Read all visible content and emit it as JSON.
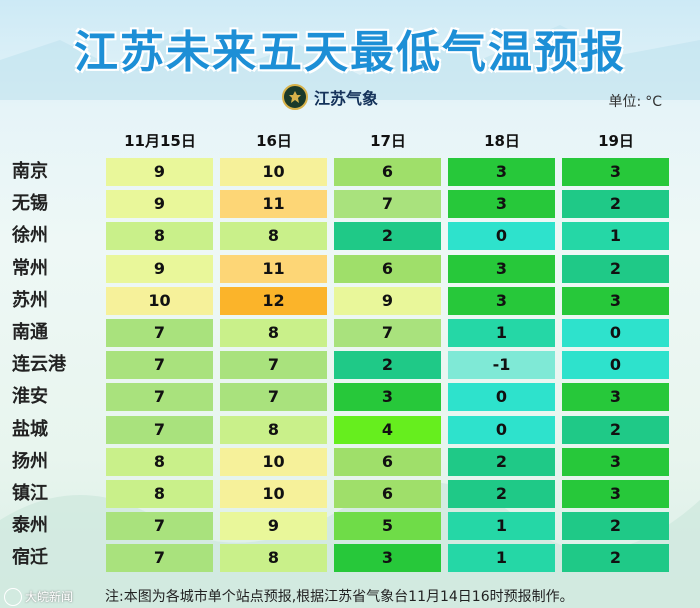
{
  "title": "江苏未来五天最低气温预报",
  "logo": {
    "name": "江苏气象"
  },
  "unit": {
    "label": "单位:",
    "value": "°C"
  },
  "columns": [
    "11月15日",
    "16日",
    "17日",
    "18日",
    "19日"
  ],
  "rows": [
    {
      "city": "南京",
      "values": [
        9,
        10,
        6,
        3,
        3
      ]
    },
    {
      "city": "无锡",
      "values": [
        9,
        11,
        7,
        3,
        2
      ]
    },
    {
      "city": "徐州",
      "values": [
        8,
        8,
        2,
        0,
        1
      ]
    },
    {
      "city": "常州",
      "values": [
        9,
        11,
        6,
        3,
        2
      ]
    },
    {
      "city": "苏州",
      "values": [
        10,
        12,
        9,
        3,
        3
      ]
    },
    {
      "city": "南通",
      "values": [
        7,
        8,
        7,
        1,
        0
      ]
    },
    {
      "city": "连云港",
      "values": [
        7,
        7,
        2,
        -1,
        0
      ]
    },
    {
      "city": "淮安",
      "values": [
        7,
        7,
        3,
        0,
        3
      ]
    },
    {
      "city": "盐城",
      "values": [
        7,
        8,
        4,
        0,
        2
      ]
    },
    {
      "city": "扬州",
      "values": [
        8,
        10,
        6,
        2,
        3
      ]
    },
    {
      "city": "镇江",
      "values": [
        8,
        10,
        6,
        2,
        3
      ]
    },
    {
      "city": "泰州",
      "values": [
        7,
        9,
        5,
        1,
        2
      ]
    },
    {
      "city": "宿迁",
      "values": [
        7,
        8,
        3,
        1,
        2
      ]
    }
  ],
  "colors": {
    "-1": "#7fe9d6",
    "0": "#2ee2cc",
    "1": "#25d7a6",
    "2": "#1fc987",
    "3": "#27c83a",
    "4": "#66ee1e",
    "5": "#6fdc48",
    "6": "#9fdf6a",
    "7": "#a9e27d",
    "8": "#c9f08a",
    "9": "#e9f79a",
    "10": "#f6f19a",
    "11": "#fdd676",
    "12": "#fbb42a"
  },
  "footer": {
    "watermark": "大皖新闻",
    "note": "注:本图为各城市单个站点预报,根据江苏省气象台11月14日16时预报制作。"
  }
}
